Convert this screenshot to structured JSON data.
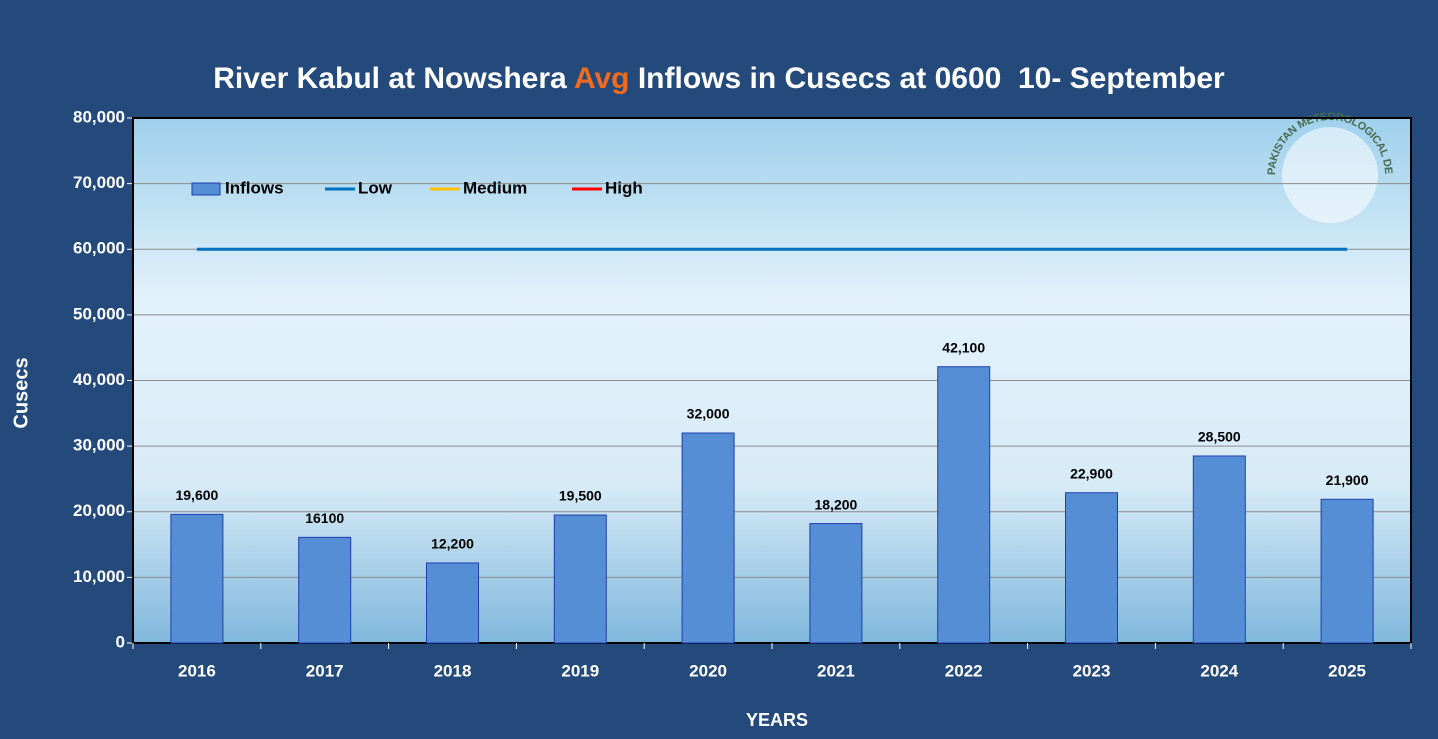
{
  "chart_data": {
    "type": "bar",
    "title": [
      "River Kabul at Nowshera ",
      "Avg",
      " Inflows in Cusecs at 0600  10- September"
    ],
    "title_highlight_color": "#f26b1d",
    "watermark": "PAKISTAN METEOROLOGICAL DEPARTMENT",
    "x_label": "YEARS",
    "y_label": "Cusecs",
    "categories": [
      "2016",
      "2017",
      "2018",
      "2019",
      "2020",
      "2021",
      "2022",
      "2023",
      "2024",
      "2025"
    ],
    "series": [
      {
        "name": "Inflows",
        "type": "bar",
        "color": "#558ed5",
        "values": [
          19600,
          16100,
          12200,
          19500,
          32000,
          18200,
          42100,
          22900,
          28500,
          21900
        ],
        "value_labels": [
          "19,600",
          "16100",
          "12,200",
          "19,500",
          "32,000",
          "18,200",
          "42,100",
          "22,900",
          "28,500",
          "21,900"
        ]
      },
      {
        "name": "Low",
        "type": "line",
        "color": "#0070c0",
        "values": [
          60000,
          60000,
          60000,
          60000,
          60000,
          60000,
          60000,
          60000,
          60000,
          60000
        ]
      },
      {
        "name": "Medium",
        "type": "line",
        "color": "#ffc000",
        "values": [
          null,
          null,
          null,
          null,
          null,
          null,
          null,
          null,
          null,
          null
        ]
      },
      {
        "name": "High",
        "type": "line",
        "color": "#ff0000",
        "values": [
          null,
          null,
          null,
          null,
          null,
          null,
          null,
          null,
          null,
          null
        ]
      }
    ],
    "ylim": [
      0,
      80000
    ],
    "yticks": [
      0,
      {
        "value": 10000,
        "label": "10,000"
      },
      {
        "value": 20000,
        "label": "20,000"
      },
      {
        "value": 30000,
        "label": "30,000"
      },
      {
        "value": 40000,
        "label": "40,000"
      },
      {
        "value": 50000,
        "label": "50,000"
      },
      {
        "value": 60000,
        "label": "60,000"
      },
      {
        "value": 70000,
        "label": "70,000"
      },
      {
        "value": 80000,
        "label": "80,000"
      }
    ],
    "grid": true,
    "legend": "top-left"
  }
}
